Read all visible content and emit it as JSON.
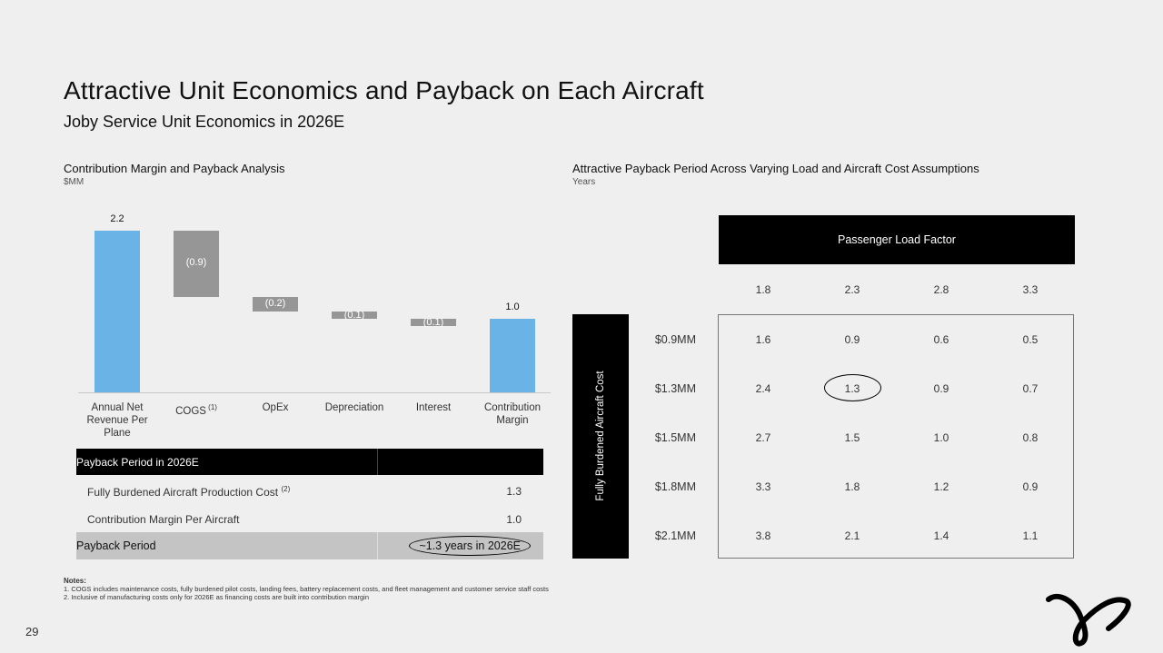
{
  "title": "Attractive Unit Economics and Payback on Each Aircraft",
  "subtitle": "Joby Service Unit Economics in 2026E",
  "left_section": {
    "title": "Contribution Margin and Payback Analysis",
    "unit": "$MM"
  },
  "right_section": {
    "title": "Attractive Payback Period Across Varying Load and Aircraft Cost Assumptions",
    "unit": "Years"
  },
  "chart_data": [
    {
      "type": "bar",
      "subtype": "waterfall",
      "categories": [
        "Annual Net Revenue Per Plane",
        "COGS",
        "OpEx",
        "Depreciation",
        "Interest",
        "Contribution Margin"
      ],
      "category_superscripts": [
        "",
        "(1)",
        "",
        "",
        "",
        ""
      ],
      "values": [
        2.2,
        -0.9,
        -0.2,
        -0.1,
        -0.1,
        1.0
      ],
      "value_labels": [
        "2.2",
        "(0.9)",
        "(0.2)",
        "(0.1)",
        "(0.1)",
        "1.0"
      ],
      "bar_kind": [
        "total",
        "delta",
        "delta",
        "delta",
        "delta",
        "total"
      ],
      "colors": {
        "total": "#69b3e7",
        "delta": "#969696"
      },
      "ylim": [
        0,
        2.2
      ]
    },
    {
      "type": "table",
      "title": "Passenger Load Factor",
      "row_header": "Fully Burdened Aircraft Cost",
      "columns": [
        "1.8",
        "2.3",
        "2.8",
        "3.3"
      ],
      "rows": [
        {
          "label": "$0.9MM",
          "values": [
            "1.6",
            "0.9",
            "0.6",
            "0.5"
          ]
        },
        {
          "label": "$1.3MM",
          "values": [
            "2.4",
            "1.3",
            "0.9",
            "0.7"
          ]
        },
        {
          "label": "$1.5MM",
          "values": [
            "2.7",
            "1.5",
            "1.0",
            "0.8"
          ]
        },
        {
          "label": "$1.8MM",
          "values": [
            "3.3",
            "1.8",
            "1.2",
            "0.9"
          ]
        },
        {
          "label": "$2.1MM",
          "values": [
            "3.8",
            "2.1",
            "1.4",
            "1.1"
          ]
        }
      ],
      "highlighted_cell": {
        "row": 1,
        "col": 1
      }
    }
  ],
  "payback": {
    "header": "Payback Period in 2026E",
    "rows": [
      {
        "label": "Fully Burdened Aircraft Production Cost",
        "sup": "(2)",
        "value": "1.3"
      },
      {
        "label": "Contribution Margin Per Aircraft",
        "sup": "",
        "value": "1.0"
      }
    ],
    "final_label": "Payback Period",
    "final_value": "~1.3 years in 2026E"
  },
  "notes": {
    "heading": "Notes:",
    "items": [
      "1.  COGS includes maintenance costs, fully burdened pilot costs, landing fees, battery replacement costs, and fleet management and customer service staff costs",
      "2.  Inclusive of manufacturing costs only for 2026E as financing costs are built into contribution margin"
    ]
  },
  "page_number": "29",
  "logo_icon": "joby-logo-icon"
}
